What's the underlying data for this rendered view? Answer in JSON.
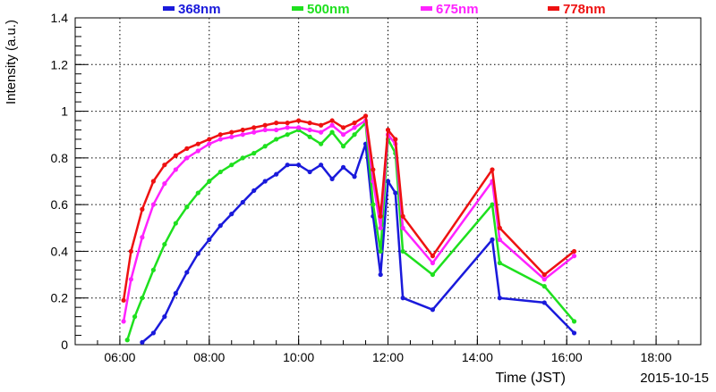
{
  "chart_data": {
    "type": "scatter",
    "xlabel": "Time (JST)",
    "ylabel": "Intensity (a.u.)",
    "date_label": "2015-10-15",
    "xlim": [
      "05:00",
      "19:00"
    ],
    "ylim": [
      0,
      1.4
    ],
    "x_ticks": [
      "06:00",
      "08:00",
      "10:00",
      "12:00",
      "14:00",
      "16:00",
      "18:00"
    ],
    "y_ticks": [
      "0",
      "0.2",
      "0.4",
      "0.6",
      "0.8",
      "1",
      "1.2",
      "1.4"
    ],
    "grid": true,
    "legend_position": "top",
    "series": [
      {
        "name": "368nm",
        "color": "#1a1adb",
        "x": [
          "06:30",
          "06:45",
          "07:00",
          "07:15",
          "07:30",
          "07:45",
          "08:00",
          "08:15",
          "08:30",
          "08:45",
          "09:00",
          "09:15",
          "09:30",
          "09:45",
          "10:00",
          "10:15",
          "10:30",
          "10:45",
          "11:00",
          "11:15",
          "11:30",
          "11:40",
          "11:50",
          "12:00",
          "12:10",
          "12:20",
          "13:00",
          "14:20",
          "14:30",
          "15:30",
          "16:10"
        ],
        "y": [
          0.01,
          0.05,
          0.12,
          0.22,
          0.31,
          0.39,
          0.45,
          0.51,
          0.56,
          0.61,
          0.66,
          0.7,
          0.73,
          0.77,
          0.77,
          0.74,
          0.77,
          0.71,
          0.76,
          0.72,
          0.86,
          0.55,
          0.3,
          0.7,
          0.65,
          0.2,
          0.15,
          0.45,
          0.2,
          0.18,
          0.05
        ]
      },
      {
        "name": "500nm",
        "color": "#1ee01e",
        "x": [
          "06:10",
          "06:20",
          "06:30",
          "06:45",
          "07:00",
          "07:15",
          "07:30",
          "07:45",
          "08:00",
          "08:15",
          "08:30",
          "08:45",
          "09:00",
          "09:15",
          "09:30",
          "09:45",
          "10:00",
          "10:15",
          "10:30",
          "10:45",
          "11:00",
          "11:15",
          "11:30",
          "11:40",
          "11:50",
          "12:00",
          "12:10",
          "12:20",
          "13:00",
          "14:20",
          "14:30",
          "15:30",
          "16:10"
        ],
        "y": [
          0.02,
          0.12,
          0.2,
          0.32,
          0.43,
          0.52,
          0.59,
          0.65,
          0.7,
          0.74,
          0.77,
          0.8,
          0.82,
          0.85,
          0.88,
          0.9,
          0.92,
          0.89,
          0.86,
          0.91,
          0.85,
          0.9,
          0.95,
          0.6,
          0.4,
          0.88,
          0.82,
          0.4,
          0.3,
          0.6,
          0.35,
          0.25,
          0.1
        ]
      },
      {
        "name": "675nm",
        "color": "#ff22ff",
        "x": [
          "06:05",
          "06:15",
          "06:30",
          "06:45",
          "07:00",
          "07:15",
          "07:30",
          "07:45",
          "08:00",
          "08:15",
          "08:30",
          "08:45",
          "09:00",
          "09:15",
          "09:30",
          "09:45",
          "10:00",
          "10:15",
          "10:30",
          "10:45",
          "11:00",
          "11:15",
          "11:30",
          "11:40",
          "11:50",
          "12:00",
          "12:10",
          "12:20",
          "13:00",
          "14:20",
          "14:30",
          "15:30",
          "16:10"
        ],
        "y": [
          0.1,
          0.28,
          0.46,
          0.6,
          0.69,
          0.75,
          0.8,
          0.83,
          0.86,
          0.88,
          0.89,
          0.9,
          0.91,
          0.92,
          0.92,
          0.93,
          0.93,
          0.92,
          0.91,
          0.94,
          0.9,
          0.93,
          0.96,
          0.7,
          0.5,
          0.9,
          0.86,
          0.5,
          0.35,
          0.7,
          0.45,
          0.28,
          0.38
        ]
      },
      {
        "name": "778nm",
        "color": "#ee1111",
        "x": [
          "06:05",
          "06:15",
          "06:30",
          "06:45",
          "07:00",
          "07:15",
          "07:30",
          "07:45",
          "08:00",
          "08:15",
          "08:30",
          "08:45",
          "09:00",
          "09:15",
          "09:30",
          "09:45",
          "10:00",
          "10:15",
          "10:30",
          "10:45",
          "11:00",
          "11:15",
          "11:30",
          "11:40",
          "11:50",
          "12:00",
          "12:10",
          "12:20",
          "13:00",
          "14:20",
          "14:30",
          "15:30",
          "16:10"
        ],
        "y": [
          0.19,
          0.4,
          0.58,
          0.7,
          0.77,
          0.81,
          0.84,
          0.86,
          0.88,
          0.9,
          0.91,
          0.92,
          0.93,
          0.94,
          0.95,
          0.95,
          0.96,
          0.95,
          0.94,
          0.96,
          0.93,
          0.95,
          0.98,
          0.75,
          0.55,
          0.92,
          0.88,
          0.55,
          0.38,
          0.75,
          0.5,
          0.3,
          0.4
        ]
      }
    ]
  }
}
